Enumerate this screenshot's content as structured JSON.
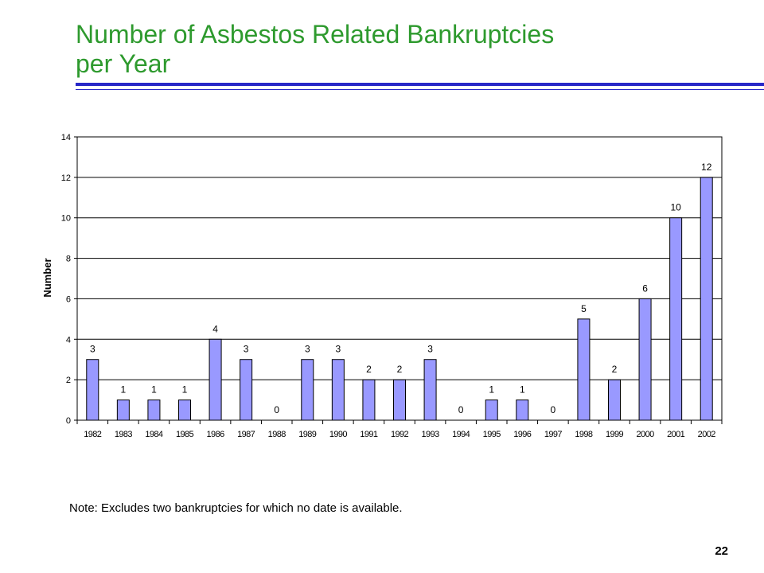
{
  "slide": {
    "title_line1": "Number of Asbestos Related Bankruptcies",
    "title_line2": "per Year",
    "note": "Note: Excludes two bankruptcies for which no date is available.",
    "page_number": "22",
    "colors": {
      "title": "#2e9a2e",
      "rule": "#2828c8",
      "bar_fill": "#9999ff",
      "bar_stroke": "#000000"
    }
  },
  "chart_data": {
    "type": "bar",
    "categories": [
      "1982",
      "1983",
      "1984",
      "1985",
      "1986",
      "1987",
      "1988",
      "1989",
      "1990",
      "1991",
      "1992",
      "1993",
      "1994",
      "1995",
      "1996",
      "1997",
      "1998",
      "1999",
      "2000",
      "2001",
      "2002"
    ],
    "values": [
      3,
      1,
      1,
      1,
      4,
      3,
      0,
      3,
      3,
      2,
      2,
      3,
      0,
      1,
      1,
      0,
      5,
      2,
      6,
      10,
      12
    ],
    "data_labels": [
      "3",
      "1",
      "1",
      "1",
      "4",
      "3",
      "0",
      "3",
      "3",
      "2",
      "2",
      "3",
      "0",
      "1",
      "1",
      "0",
      "5",
      "2",
      "6",
      "10",
      "12"
    ],
    "title": "",
    "xlabel": "",
    "ylabel": "Number",
    "ylim": [
      0,
      14
    ],
    "yticks": [
      "0",
      "2",
      "4",
      "6",
      "8",
      "10",
      "12",
      "14"
    ],
    "grid": true,
    "legend": "none"
  }
}
